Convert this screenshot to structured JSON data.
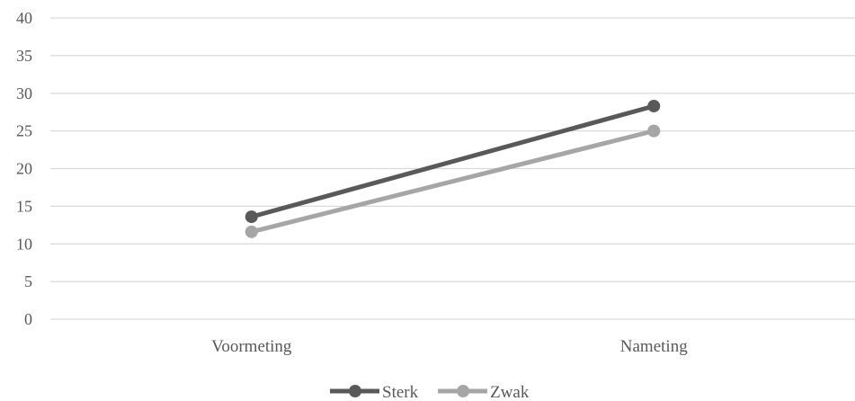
{
  "chart_data": {
    "type": "line",
    "categories": [
      "Voormeting",
      "Nameting"
    ],
    "series": [
      {
        "name": "Sterk",
        "values": [
          13.6,
          28.3
        ],
        "color": "#595959"
      },
      {
        "name": "Zwak",
        "values": [
          11.6,
          25.0
        ],
        "color": "#A6A6A6"
      }
    ],
    "ylim": [
      0,
      40
    ],
    "yticks": [
      0,
      5,
      10,
      15,
      20,
      25,
      30,
      35,
      40
    ],
    "grid": true,
    "legend_position": "bottom",
    "gridline_color": "#D9D9D9"
  }
}
